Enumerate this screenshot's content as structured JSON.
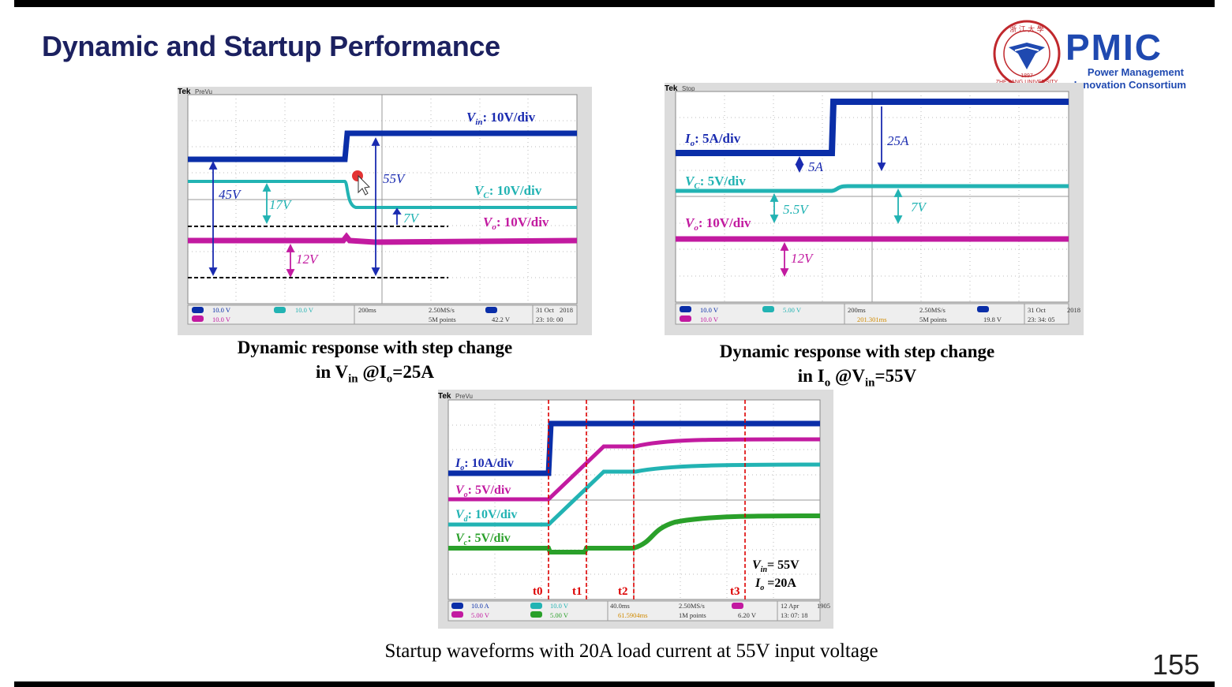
{
  "slide": {
    "title": "Dynamic and Startup Performance",
    "page_number": "155"
  },
  "logo": {
    "text": "PMIC",
    "line1": "Power Management",
    "line2": "Innovation Consortium",
    "seal_text": "浙江大學 · ZHEJIANG UNIVERSITY · 1897",
    "colors": {
      "brand": "#1f49b0",
      "seal": "#c0282d"
    }
  },
  "colors": {
    "title": "#1c2160",
    "ch_blue": "#0a2ea8",
    "ch_cyan": "#22b3b3",
    "ch_magenta": "#c21aa0",
    "ch_green": "#2aa02a",
    "marker_red": "#dd0000"
  },
  "scope1": {
    "header": "PreVu",
    "labels": {
      "vin": "V",
      "vin_sub": "in",
      "vin_div": ": 10V/div",
      "vc": "V",
      "vc_sub": "C",
      "vc_div": ": 10V/div",
      "vo": "V",
      "vo_sub": "o",
      "vo_div": ": 10V/div"
    },
    "annotations": [
      "45V",
      "17V",
      "55V",
      "7V",
      "12V"
    ],
    "footer": {
      "ch1": "10.0 V",
      "ch4": "10.0 V",
      "ch2": "10.0 V",
      "time": "200ms",
      "rate": "2.50MS/s",
      "points": "5M points",
      "trig": "42.2 V",
      "date": "31 Oct",
      "year": "2018",
      "clock": "23: 10: 00"
    }
  },
  "scope2": {
    "header": "Stop",
    "labels": {
      "io": "I",
      "io_sub": "o",
      "io_div": ": 5A/div",
      "vc": "V",
      "vc_sub": "C",
      "vc_div": ": 5V/div",
      "vo": "V",
      "vo_sub": "o",
      "vo_div": ": 10V/div"
    },
    "annotations": [
      "25A",
      "5A",
      "5.5V",
      "7V",
      "12V"
    ],
    "footer": {
      "ch1": "10.0 V",
      "ch4": "10.0 V",
      "ch2": "5.00 V",
      "time": "200ms",
      "delay": "201.301ms",
      "rate": "2.50MS/s",
      "points": "5M points",
      "trig": "19.8 V",
      "date": "31 Oct",
      "year": "2018",
      "clock": "23: 34: 05"
    }
  },
  "scope3": {
    "header": "PreVu",
    "labels": {
      "io": "I",
      "io_sub": "o",
      "io_div": ": 10A/div",
      "vo": "V",
      "vo_sub": "o",
      "vo_div": ": 5V/div",
      "vd": "V",
      "vd_sub": "d",
      "vd_div": ": 10V/div",
      "vc": "V",
      "vc_sub": "c",
      "vc_div": ": 5V/div",
      "vin_line": "= 55V",
      "vin_sym": "V",
      "vin_sub": "in",
      "io_line": " =20A",
      "io_sym": "I",
      "io_sub2": "o"
    },
    "time_markers": [
      "t0",
      "t1",
      "t2",
      "t3"
    ],
    "footer": {
      "ch1": "10.0 A",
      "ch3": "5.00 V",
      "ch2": "10.0 V",
      "ch4": "5.00 V",
      "time": "40.0ms",
      "delay": "61.5904ms",
      "rate": "2.50MS/s",
      "points": "1M points",
      "trig": "6.20 V",
      "date": "12 Apr",
      "year": "1905",
      "clock": "13: 07: 18"
    }
  },
  "captions": {
    "left_line1": "Dynamic response with step change",
    "left_line2_a": "in V",
    "left_line2_sub1": "in",
    "left_line2_b": " @I",
    "left_line2_sub2": "o",
    "left_line2_c": "=25A",
    "right_line1": "Dynamic response with step change",
    "right_line2_a": "in I",
    "right_line2_sub1": "o",
    "right_line2_b": " @V",
    "right_line2_sub2": "in",
    "right_line2_c": "=55V",
    "bottom": "Startup waveforms with 20A load current at 55V input voltage"
  }
}
